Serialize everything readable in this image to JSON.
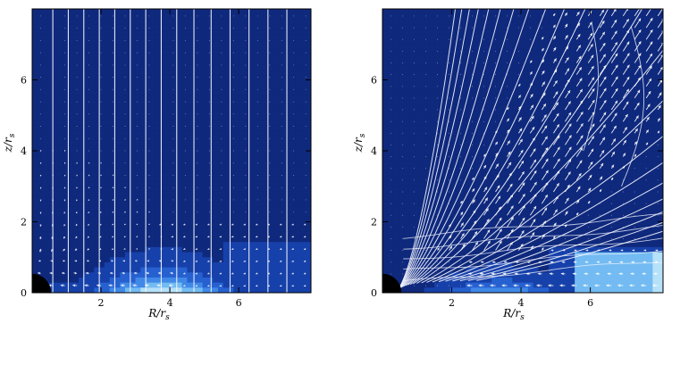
{
  "chart_data": [
    {
      "type": "heatmap",
      "panel": "left",
      "xlabel_main": "R/r",
      "xlabel_sub": "s",
      "ylabel_main": "z/r",
      "ylabel_sub": "s",
      "xlim": [
        0,
        8.1
      ],
      "ylim": [
        0,
        8.0
      ],
      "xticks": [
        2,
        4,
        6
      ],
      "yticks": [
        0,
        2,
        4,
        6
      ],
      "field_lines": "vertical",
      "field_line_x": [
        0.6,
        1.05,
        1.5,
        1.95,
        2.4,
        2.85,
        3.3,
        3.75,
        4.2,
        4.7,
        5.2,
        5.75,
        6.3,
        6.85,
        7.4
      ],
      "colormap": [
        "#06060e",
        "#0a1030",
        "#0d1c5a",
        "#10308f",
        "#1f55c8",
        "#3d86e6",
        "#7fc6f5",
        "#d8f2fb"
      ],
      "color_levels": [
        0.0,
        0.13,
        0.26,
        0.4,
        0.55,
        0.7,
        0.85,
        1.0
      ]
    },
    {
      "type": "heatmap",
      "panel": "right",
      "xlabel_main": "R/r",
      "xlabel_sub": "s",
      "ylabel_main": "z/r",
      "ylabel_sub": "s",
      "xlim": [
        0,
        8.1
      ],
      "ylim": [
        0,
        8.0
      ],
      "xticks": [
        2,
        4,
        6
      ],
      "yticks": [
        0,
        2,
        4,
        6
      ],
      "field_lines": "curved",
      "colormap": [
        "#06060e",
        "#0a1030",
        "#0d1c5a",
        "#10308f",
        "#1f55c8",
        "#3d86e6",
        "#7fc6f5",
        "#d8f2fb"
      ],
      "color_levels": [
        0.0,
        0.13,
        0.26,
        0.4,
        0.55,
        0.7,
        0.85,
        1.0
      ]
    }
  ]
}
